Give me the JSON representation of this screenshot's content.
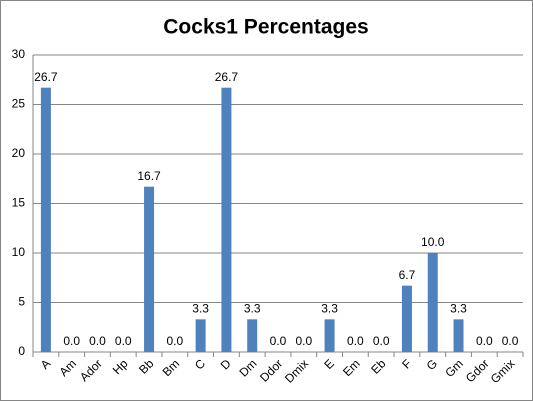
{
  "chart_data": {
    "type": "bar",
    "title": "Cocks1 Percentages",
    "categories": [
      "A",
      "Am",
      "Ador",
      "Hp",
      "Bb",
      "Bm",
      "C",
      "D",
      "Dm",
      "Ddor",
      "Dmix",
      "E",
      "Em",
      "Eb",
      "F",
      "G",
      "Gm",
      "Gdor",
      "Gmix"
    ],
    "values": [
      26.7,
      0,
      0,
      0,
      16.7,
      0,
      3.3,
      26.7,
      3.3,
      0,
      0,
      3.3,
      0,
      0,
      6.7,
      10,
      3.3,
      0,
      0
    ],
    "value_labels": [
      "26.7",
      "0.0",
      "0.0",
      "0.0",
      "16.7",
      "0.0",
      "3.3",
      "26.7",
      "3.3",
      "0.0",
      "0.0",
      "3.3",
      "0.0",
      "0.0",
      "6.7",
      "10.0",
      "3.3",
      "0.0",
      "0.0"
    ],
    "color": "#4f81bd",
    "ylim": [
      0,
      30
    ],
    "yticks": [
      0,
      5,
      10,
      15,
      20,
      25,
      30
    ],
    "grid": true
  }
}
